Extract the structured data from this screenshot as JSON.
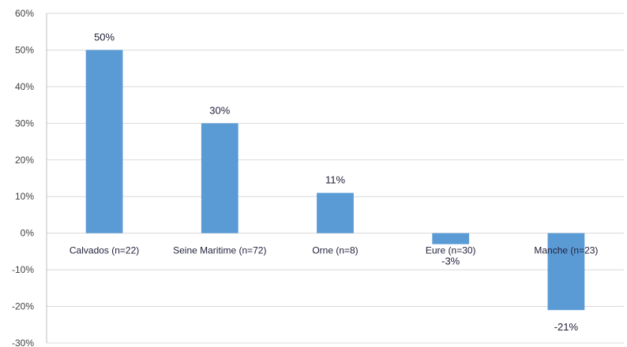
{
  "chart_data": {
    "type": "bar",
    "title": "",
    "xlabel": "",
    "ylabel": "",
    "categories": [
      "Calvados (n=22)",
      "Seine Maritime (n=72)",
      "Orne (n=8)",
      "Eure (n=30)",
      "Manche (n=23)"
    ],
    "values": [
      50,
      30,
      11,
      -3,
      -21
    ],
    "data_labels": [
      "50%",
      "30%",
      "11%",
      "-3%",
      "-21%"
    ],
    "ylim": [
      -30,
      60
    ],
    "yticks": [
      -30,
      -20,
      -10,
      0,
      10,
      20,
      30,
      40,
      50,
      60
    ],
    "ytick_labels": [
      "-30%",
      "-20%",
      "-10%",
      "0%",
      "10%",
      "20%",
      "30%",
      "40%",
      "50%",
      "60%"
    ],
    "grid": true,
    "legend": "none",
    "colors": {
      "bar": "#5b9bd5",
      "grid": "#d9d9d9",
      "axis": "#bfbfbf"
    }
  }
}
